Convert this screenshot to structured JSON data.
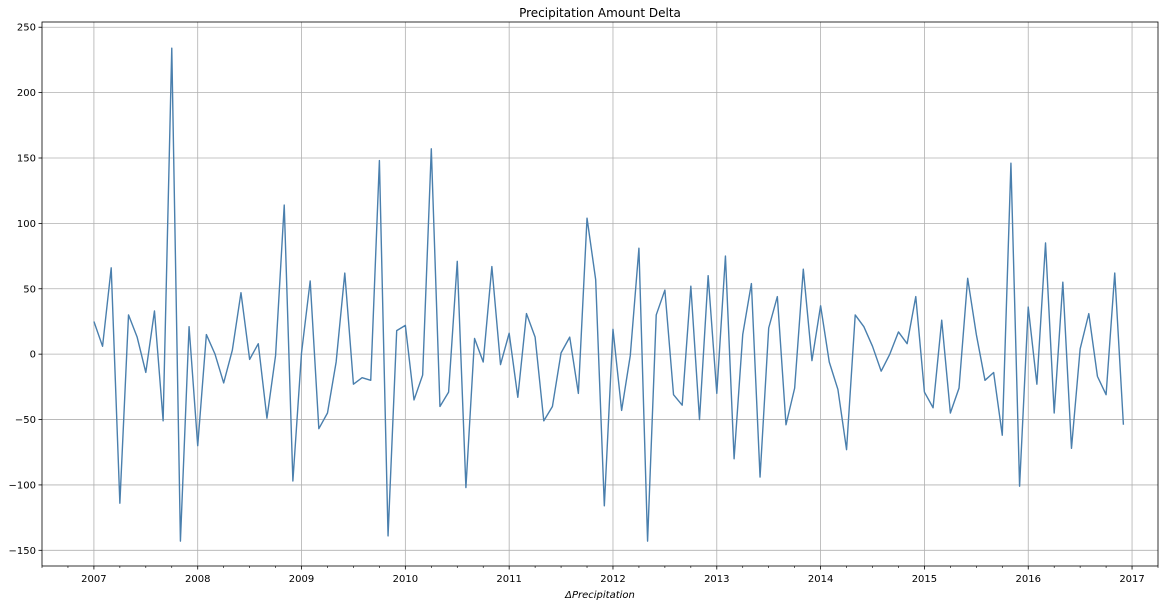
{
  "chart_data": {
    "type": "line",
    "title": "Precipitation Amount Delta",
    "xlabel": "ΔPrecipitation",
    "ylabel": "",
    "x_start": "2007-01",
    "x_frequency": "monthly",
    "xlim": [
      "2006-07",
      "2017-04"
    ],
    "ylim": [
      -162,
      254
    ],
    "x_ticks": [
      "2007",
      "2008",
      "2009",
      "2010",
      "2011",
      "2012",
      "2013",
      "2014",
      "2015",
      "2016",
      "2017"
    ],
    "y_ticks": [
      -150,
      -100,
      -50,
      0,
      50,
      100,
      150,
      200,
      250
    ],
    "grid": true,
    "line_color": "#4a7fad",
    "series": [
      {
        "values": [
          25,
          6,
          66,
          -114,
          30,
          13,
          -14,
          33,
          -51,
          234,
          -143,
          21,
          -70,
          15,
          0,
          -22,
          3,
          47,
          -4,
          8,
          -49,
          -1,
          114,
          -97,
          1,
          56,
          -57,
          -45,
          -6,
          62,
          -23,
          -18,
          -20,
          148,
          -139,
          18,
          22,
          -35,
          -16,
          157,
          -40,
          -29,
          71,
          -102,
          12,
          -6,
          67,
          -8,
          16,
          -33,
          31,
          13,
          -51,
          -40,
          1,
          13,
          -30,
          104,
          57,
          -116,
          19,
          -43,
          -1,
          81,
          -143,
          30,
          49,
          -31,
          -39,
          52,
          -50,
          60,
          -30,
          75,
          -80,
          15,
          54,
          -94,
          20,
          44,
          -54,
          -26,
          65,
          -5,
          37,
          -6,
          -27,
          -73,
          30,
          21,
          6,
          -13,
          0,
          17,
          8,
          44,
          -29,
          -41,
          26,
          -45,
          -26,
          58,
          15,
          -20,
          -14,
          -62,
          146,
          -101,
          36,
          -23,
          85,
          -45,
          55,
          -72,
          4,
          31,
          -17,
          -31,
          62,
          -54
        ]
      }
    ]
  }
}
